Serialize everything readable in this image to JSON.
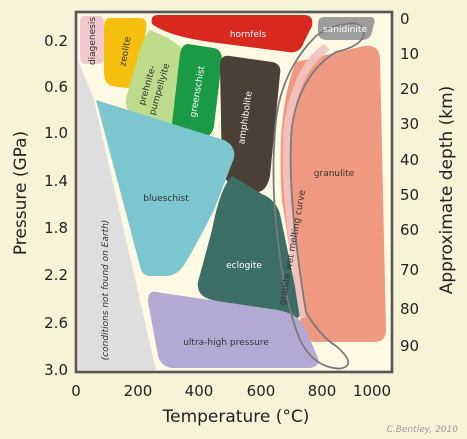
{
  "axes": {
    "x_title": "Temperature (°C)",
    "y_left_title": "Pressure (GPa)",
    "y_right_title": "Approximate depth (km)",
    "x_ticks": [
      "0",
      "200",
      "400",
      "600",
      "800",
      "1000"
    ],
    "y_left_ticks": [
      "0.2",
      "0.6",
      "1.0",
      "1.4",
      "1.8",
      "2.2",
      "2.6",
      "3.0"
    ],
    "y_right_ticks": [
      "0",
      "10",
      "20",
      "30",
      "40",
      "50",
      "60",
      "70",
      "80",
      "90"
    ]
  },
  "facies": {
    "diagenesis": "diagenesis",
    "zeolite": "zeolite",
    "prehnite_pumpellyite_1": "prehnite-",
    "prehnite_pumpellyite_2": "pumpellyite",
    "greenschist": "greenschist",
    "amphibolite": "amphibolite",
    "hornfels": "hornfels",
    "sanidinite": "sanidinite",
    "blueschist": "blueschist",
    "eclogite": "eclogite",
    "granulite": "granulite",
    "uhp": "ultra-high pressure",
    "not_found": "(conditions not found on Earth)",
    "melting_curve": "granite wet melting curve"
  },
  "colors": {
    "diagenesis": "#f2c8cf",
    "zeolite": "#f6c10e",
    "prehnite_pumpellyite": "#bcdc8c",
    "greenschist": "#1a9a45",
    "amphibolite": "#4a4036",
    "hornfels": "#d9281f",
    "sanidinite": "#9d9d9d",
    "blueschist": "#7cc6d0",
    "eclogite": "#3b6e64",
    "granulite": "#ef9a80",
    "uhp": "#b2aad3",
    "not_found": "#dedede",
    "frame": "#555555"
  },
  "credit": "C.Bentley, 2010"
}
